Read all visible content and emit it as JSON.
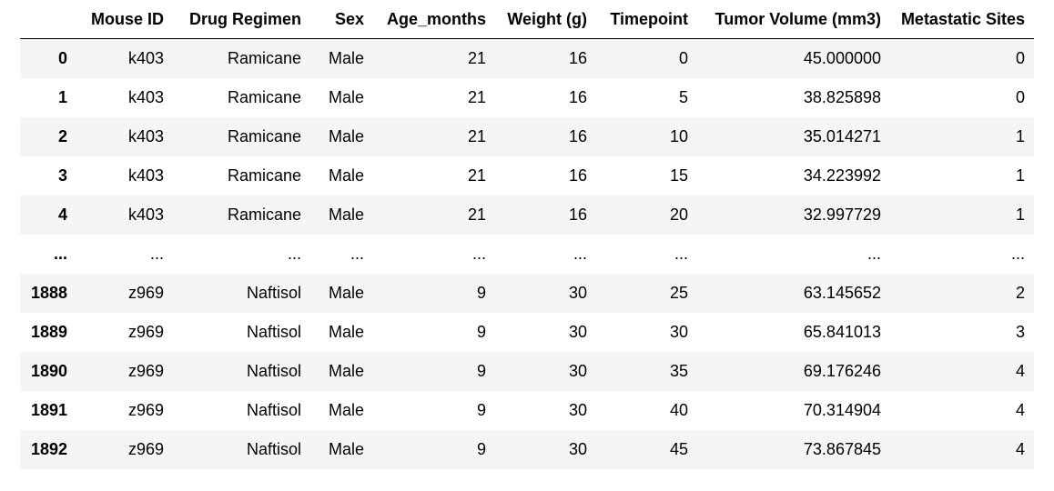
{
  "table": {
    "columns": [
      "",
      "Mouse ID",
      "Drug Regimen",
      "Sex",
      "Age_months",
      "Weight (g)",
      "Timepoint",
      "Tumor Volume (mm3)",
      "Metastatic Sites"
    ],
    "rows": [
      [
        "0",
        "k403",
        "Ramicane",
        "Male",
        "21",
        "16",
        "0",
        "45.000000",
        "0"
      ],
      [
        "1",
        "k403",
        "Ramicane",
        "Male",
        "21",
        "16",
        "5",
        "38.825898",
        "0"
      ],
      [
        "2",
        "k403",
        "Ramicane",
        "Male",
        "21",
        "16",
        "10",
        "35.014271",
        "1"
      ],
      [
        "3",
        "k403",
        "Ramicane",
        "Male",
        "21",
        "16",
        "15",
        "34.223992",
        "1"
      ],
      [
        "4",
        "k403",
        "Ramicane",
        "Male",
        "21",
        "16",
        "20",
        "32.997729",
        "1"
      ],
      [
        "...",
        "...",
        "...",
        "...",
        "...",
        "...",
        "...",
        "...",
        "..."
      ],
      [
        "1888",
        "z969",
        "Naftisol",
        "Male",
        "9",
        "30",
        "25",
        "63.145652",
        "2"
      ],
      [
        "1889",
        "z969",
        "Naftisol",
        "Male",
        "9",
        "30",
        "30",
        "65.841013",
        "3"
      ],
      [
        "1890",
        "z969",
        "Naftisol",
        "Male",
        "9",
        "30",
        "35",
        "69.176246",
        "4"
      ],
      [
        "1891",
        "z969",
        "Naftisol",
        "Male",
        "9",
        "30",
        "40",
        "70.314904",
        "4"
      ],
      [
        "1892",
        "z969",
        "Naftisol",
        "Male",
        "9",
        "30",
        "45",
        "73.867845",
        "4"
      ]
    ]
  }
}
